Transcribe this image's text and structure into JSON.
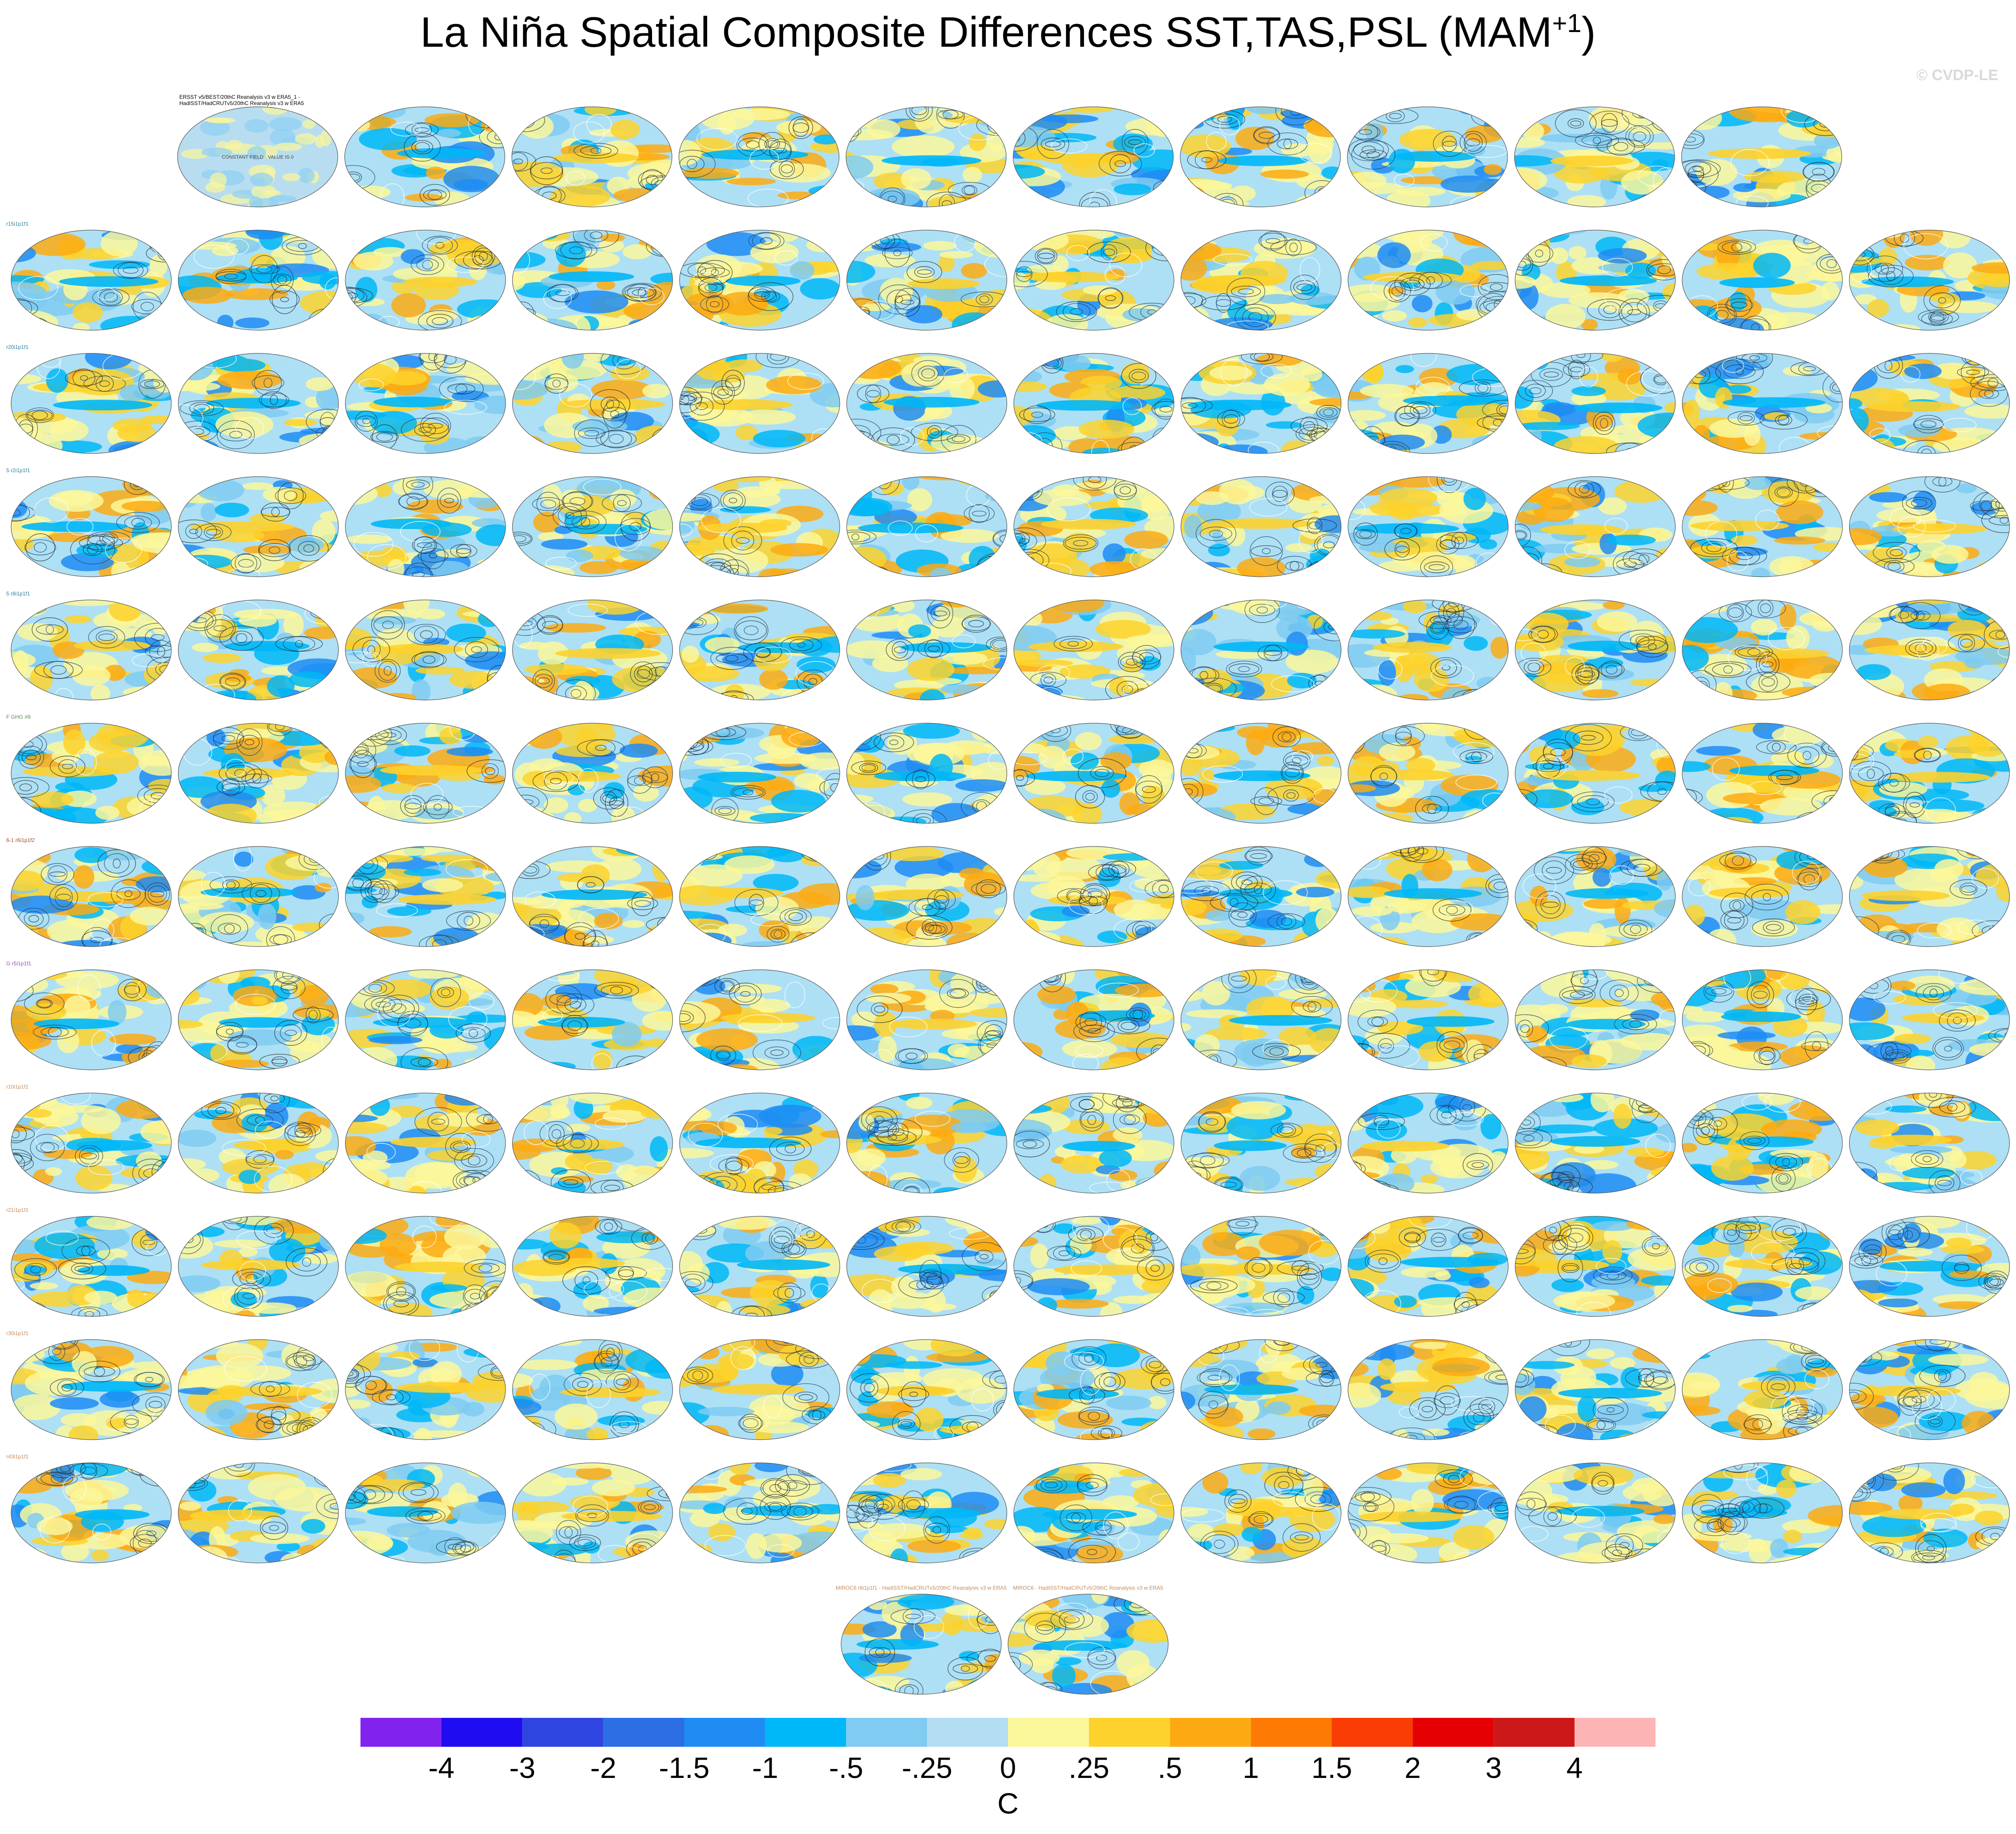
{
  "title": {
    "main": "La Niña Spatial Composite Differences SST,TAS,PSL (MAM",
    "sup": "+1",
    "close": ")"
  },
  "watermark": "© CVDP-LE",
  "chart_data": {
    "type": "heatmap",
    "description_of_panels": "grid of global map panels (composite differences, filled SST/TAS, contoured PSL)",
    "panel_counts_per_row": [
      10,
      12,
      12,
      12,
      12,
      12,
      12,
      12,
      12,
      12,
      12,
      12,
      2
    ],
    "first_panel_title": "ERSST v5/BEST/20thC Reanalysis v3 w ERA5_1 - HadISST/HadCRUTv5/20thC Reanalysis v3 w ERA5",
    "first_panel_note": "CONSTANT FIELD - VALUE IS 0",
    "row_label_fragments": [
      "r15i1p1f1",
      "r20i1p1f1",
      "5 r2i1p1f1",
      "5 r8i1p1f1",
      "F GHG #9",
      "6-1 r6i1p1f2",
      "G r5i1p1f1",
      "r10i1p1f1",
      "r21i1p1f1",
      "r30i1p1f1",
      "r43i1p1f1"
    ],
    "last_row_titles": [
      "MIROC6 r8i1p1f1 - HadISST/HadCRUTv5/20thC Reanalysis v3 w ERA5",
      "MIROC6 - HadISST/HadCRUTv5/20thC Reanalysis v3 w ERA5"
    ],
    "colorbar": {
      "labels": [
        "-4",
        "-3",
        "-2",
        "-1.5",
        "-1",
        "-.5",
        "-.25",
        "0",
        ".25",
        ".5",
        "1",
        "1.5",
        "2",
        "3",
        "4"
      ],
      "colors": [
        "#8122ee",
        "#1f0cf0",
        "#2f45e0",
        "#2c6fe4",
        "#1e8cf3",
        "#00b7f7",
        "#7fcbf1",
        "#b3ddf1",
        "#fbf79b",
        "#fdd22c",
        "#fdaa12",
        "#fd7a05",
        "#f93b04",
        "#e50003",
        "#cc1818",
        "#fdb4b4"
      ],
      "units": "C"
    }
  }
}
